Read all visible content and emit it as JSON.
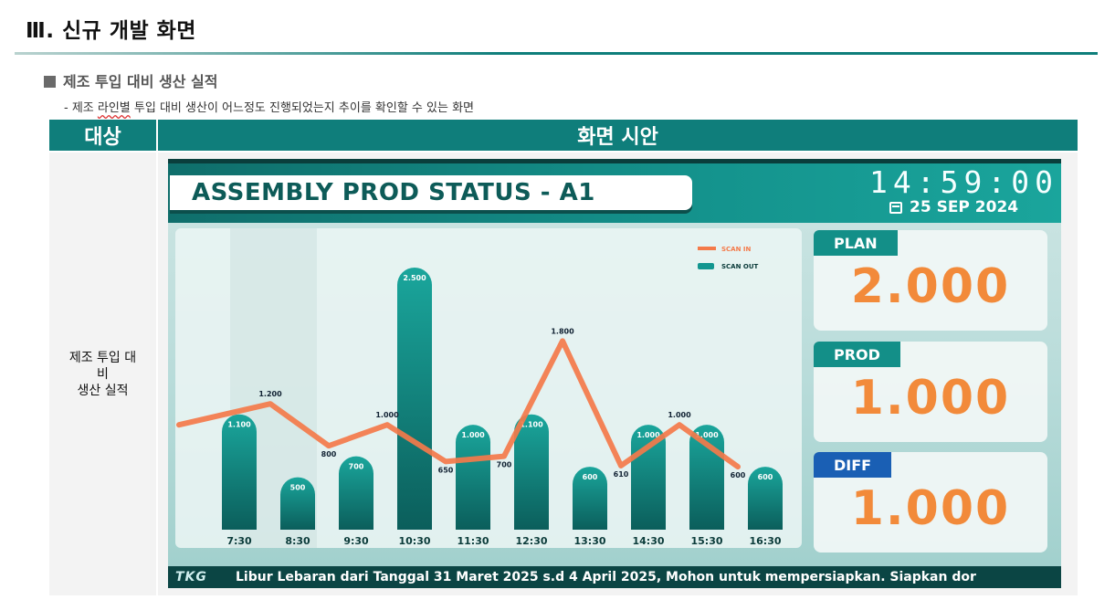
{
  "section_title": "Ⅲ. 신규 개발 화면",
  "subsection": "제조 투입 대비 생산 실적",
  "description": {
    "prefix": "- 제조 ",
    "wavy": "라인별",
    "suffix": " 투입 대비 생산이 어느정도 진행되었는지 추이를 확인할 수 있는 화면"
  },
  "table": {
    "col1_header": "대상",
    "col2_header": "화면 시안",
    "col1_value_line1": "제조 투입 대",
    "col1_value_line2": "비",
    "col1_value_line3": "생산 실적"
  },
  "dashboard": {
    "title": "ASSEMBLY PROD STATUS - A1",
    "clock": "14:59:00",
    "date": "25 SEP 2024",
    "cards": [
      {
        "label": "PLAN",
        "value": "2.000",
        "color": "#138f88"
      },
      {
        "label": "PROD",
        "value": "1.000",
        "color": "#138f88"
      },
      {
        "label": "DIFF",
        "value": "1.000",
        "color": "#1a5fb4"
      }
    ],
    "ticker_logo": "TKG",
    "ticker_text": "Libur Lebaran dari Tanggal 31 Maret 2025 s.d 4 April 2025, Mohon untuk mempersiapkan. Siapkan dor"
  },
  "chart_data": {
    "type": "bar",
    "categories": [
      "7:30",
      "8:30",
      "9:30",
      "10:30",
      "11:30",
      "12:30",
      "13:30",
      "14:30",
      "15:30",
      "16:30"
    ],
    "series": [
      {
        "name": "SCAN OUT",
        "type": "bar",
        "values": [
          1100,
          500,
          700,
          2500,
          1000,
          1100,
          600,
          1000,
          1000,
          600
        ],
        "color": "#139690"
      },
      {
        "name": "SCAN IN",
        "type": "line",
        "values": [
          1200,
          800,
          1000,
          650,
          700,
          1800,
          610,
          1000,
          600,
          null
        ],
        "color": "#f47a4a"
      }
    ],
    "bar_labels": [
      "1.100",
      "500",
      "700",
      "2.500",
      "1.000",
      "1.100",
      "600",
      "1.000",
      "1.000",
      "600"
    ],
    "line_labels": [
      "1.200",
      "800",
      "1.000",
      "650",
      "700",
      "1.800",
      "610",
      "1.000",
      "600"
    ],
    "legend": [
      "SCAN IN",
      "SCAN OUT"
    ],
    "ylim": [
      0,
      2700
    ],
    "grid": false,
    "legend_position": "top-right"
  }
}
